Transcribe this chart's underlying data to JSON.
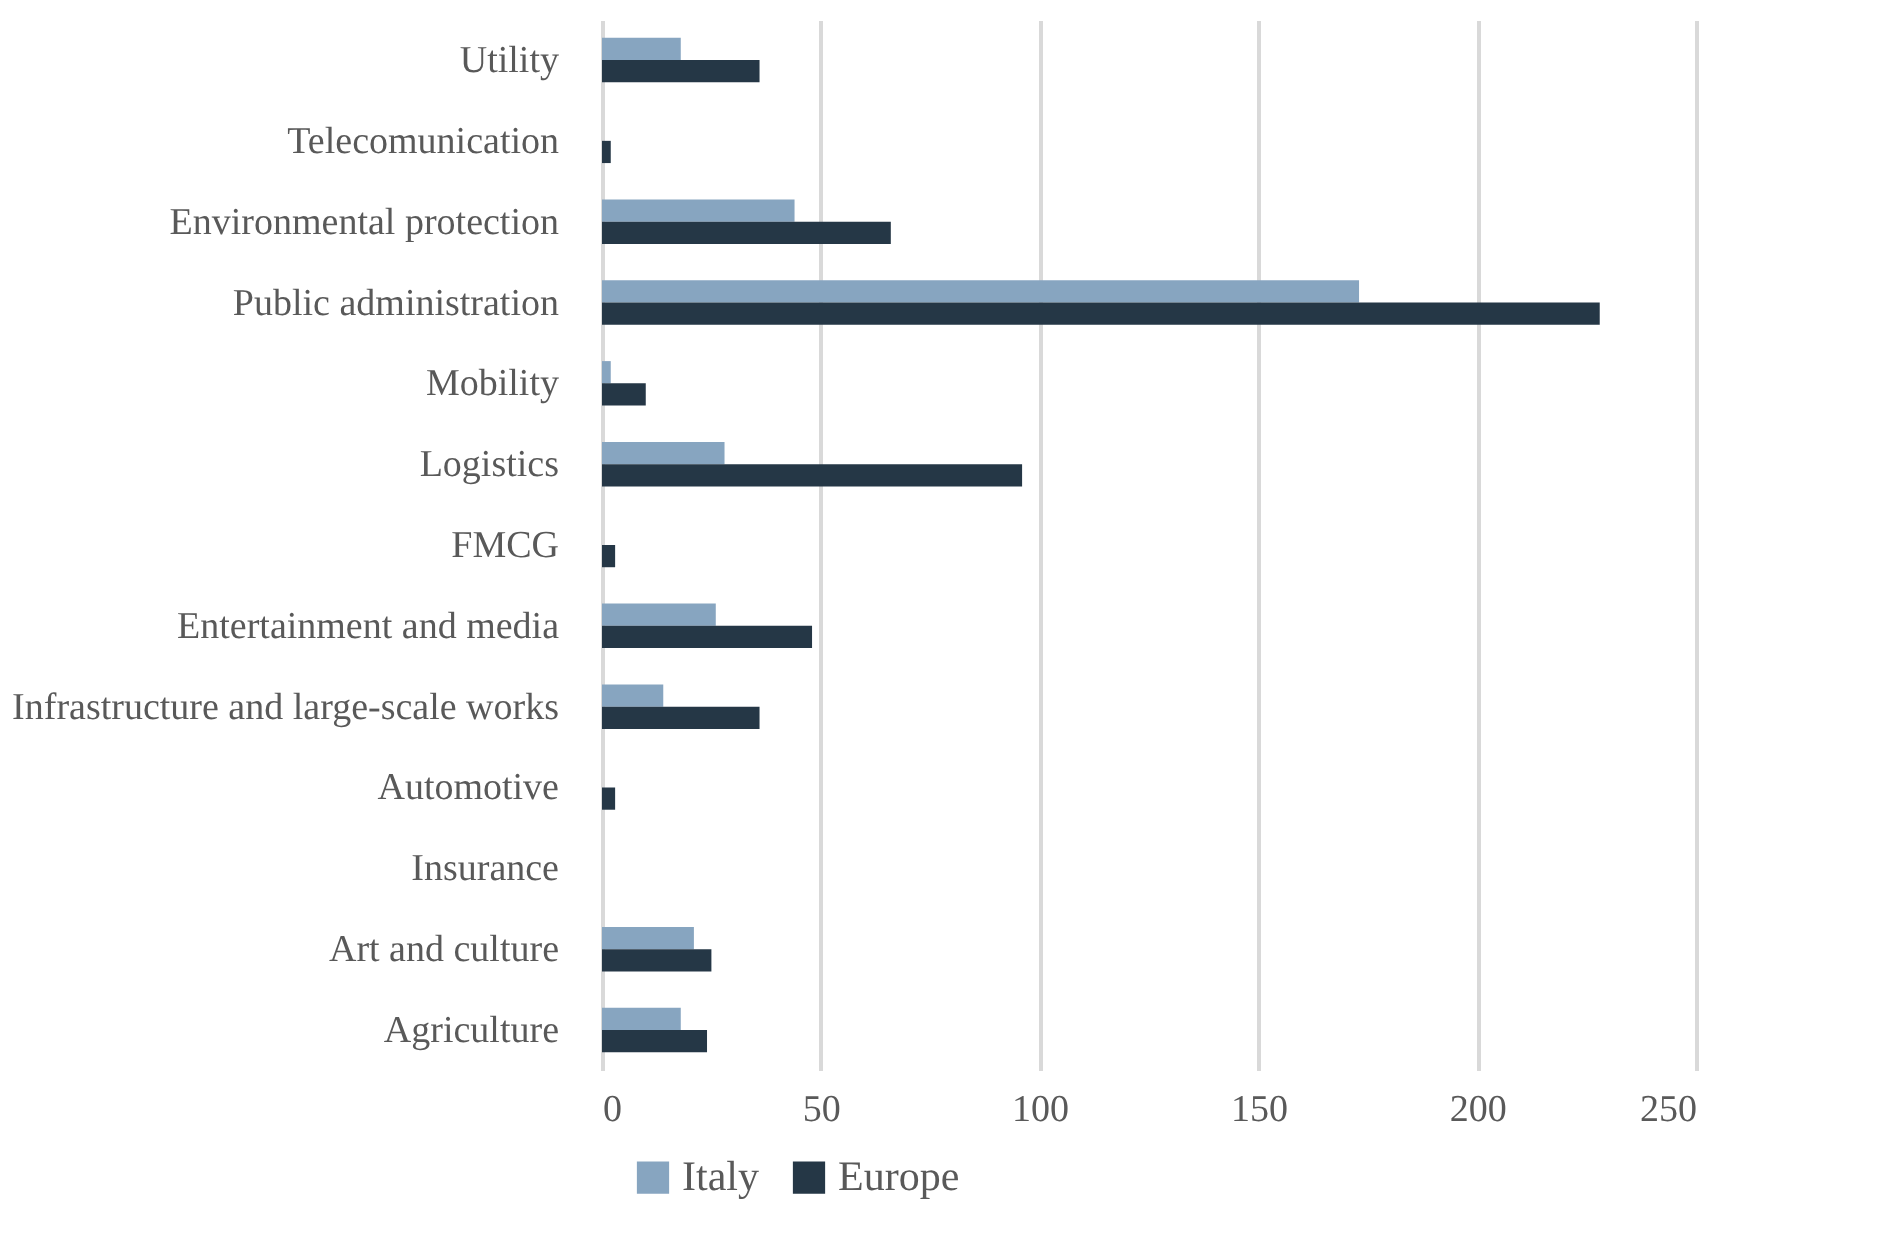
{
  "chart_data": {
    "type": "bar",
    "orientation": "horizontal",
    "categories": [
      "Utility",
      "Telecomunication",
      "Environmental protection",
      "Public administration",
      "Mobility",
      "Logistics",
      "FMCG",
      "Entertainment and media",
      "Infrastructure and large-scale works",
      "Automotive",
      "Insurance",
      "Art and culture",
      "Agriculture"
    ],
    "series": [
      {
        "name": "Italy",
        "color": "#87a5c0",
        "values": [
          18,
          0,
          44,
          173,
          2,
          28,
          0,
          26,
          14,
          0,
          0,
          21,
          18
        ]
      },
      {
        "name": "Europe",
        "color": "#253746",
        "values": [
          36,
          2,
          66,
          228,
          10,
          96,
          3,
          48,
          36,
          3,
          0,
          25,
          24
        ]
      }
    ],
    "xlim": [
      0,
      250
    ],
    "xticks": [
      0,
      50,
      100,
      150,
      200,
      250
    ],
    "grid": "x",
    "legend": "bottom"
  }
}
